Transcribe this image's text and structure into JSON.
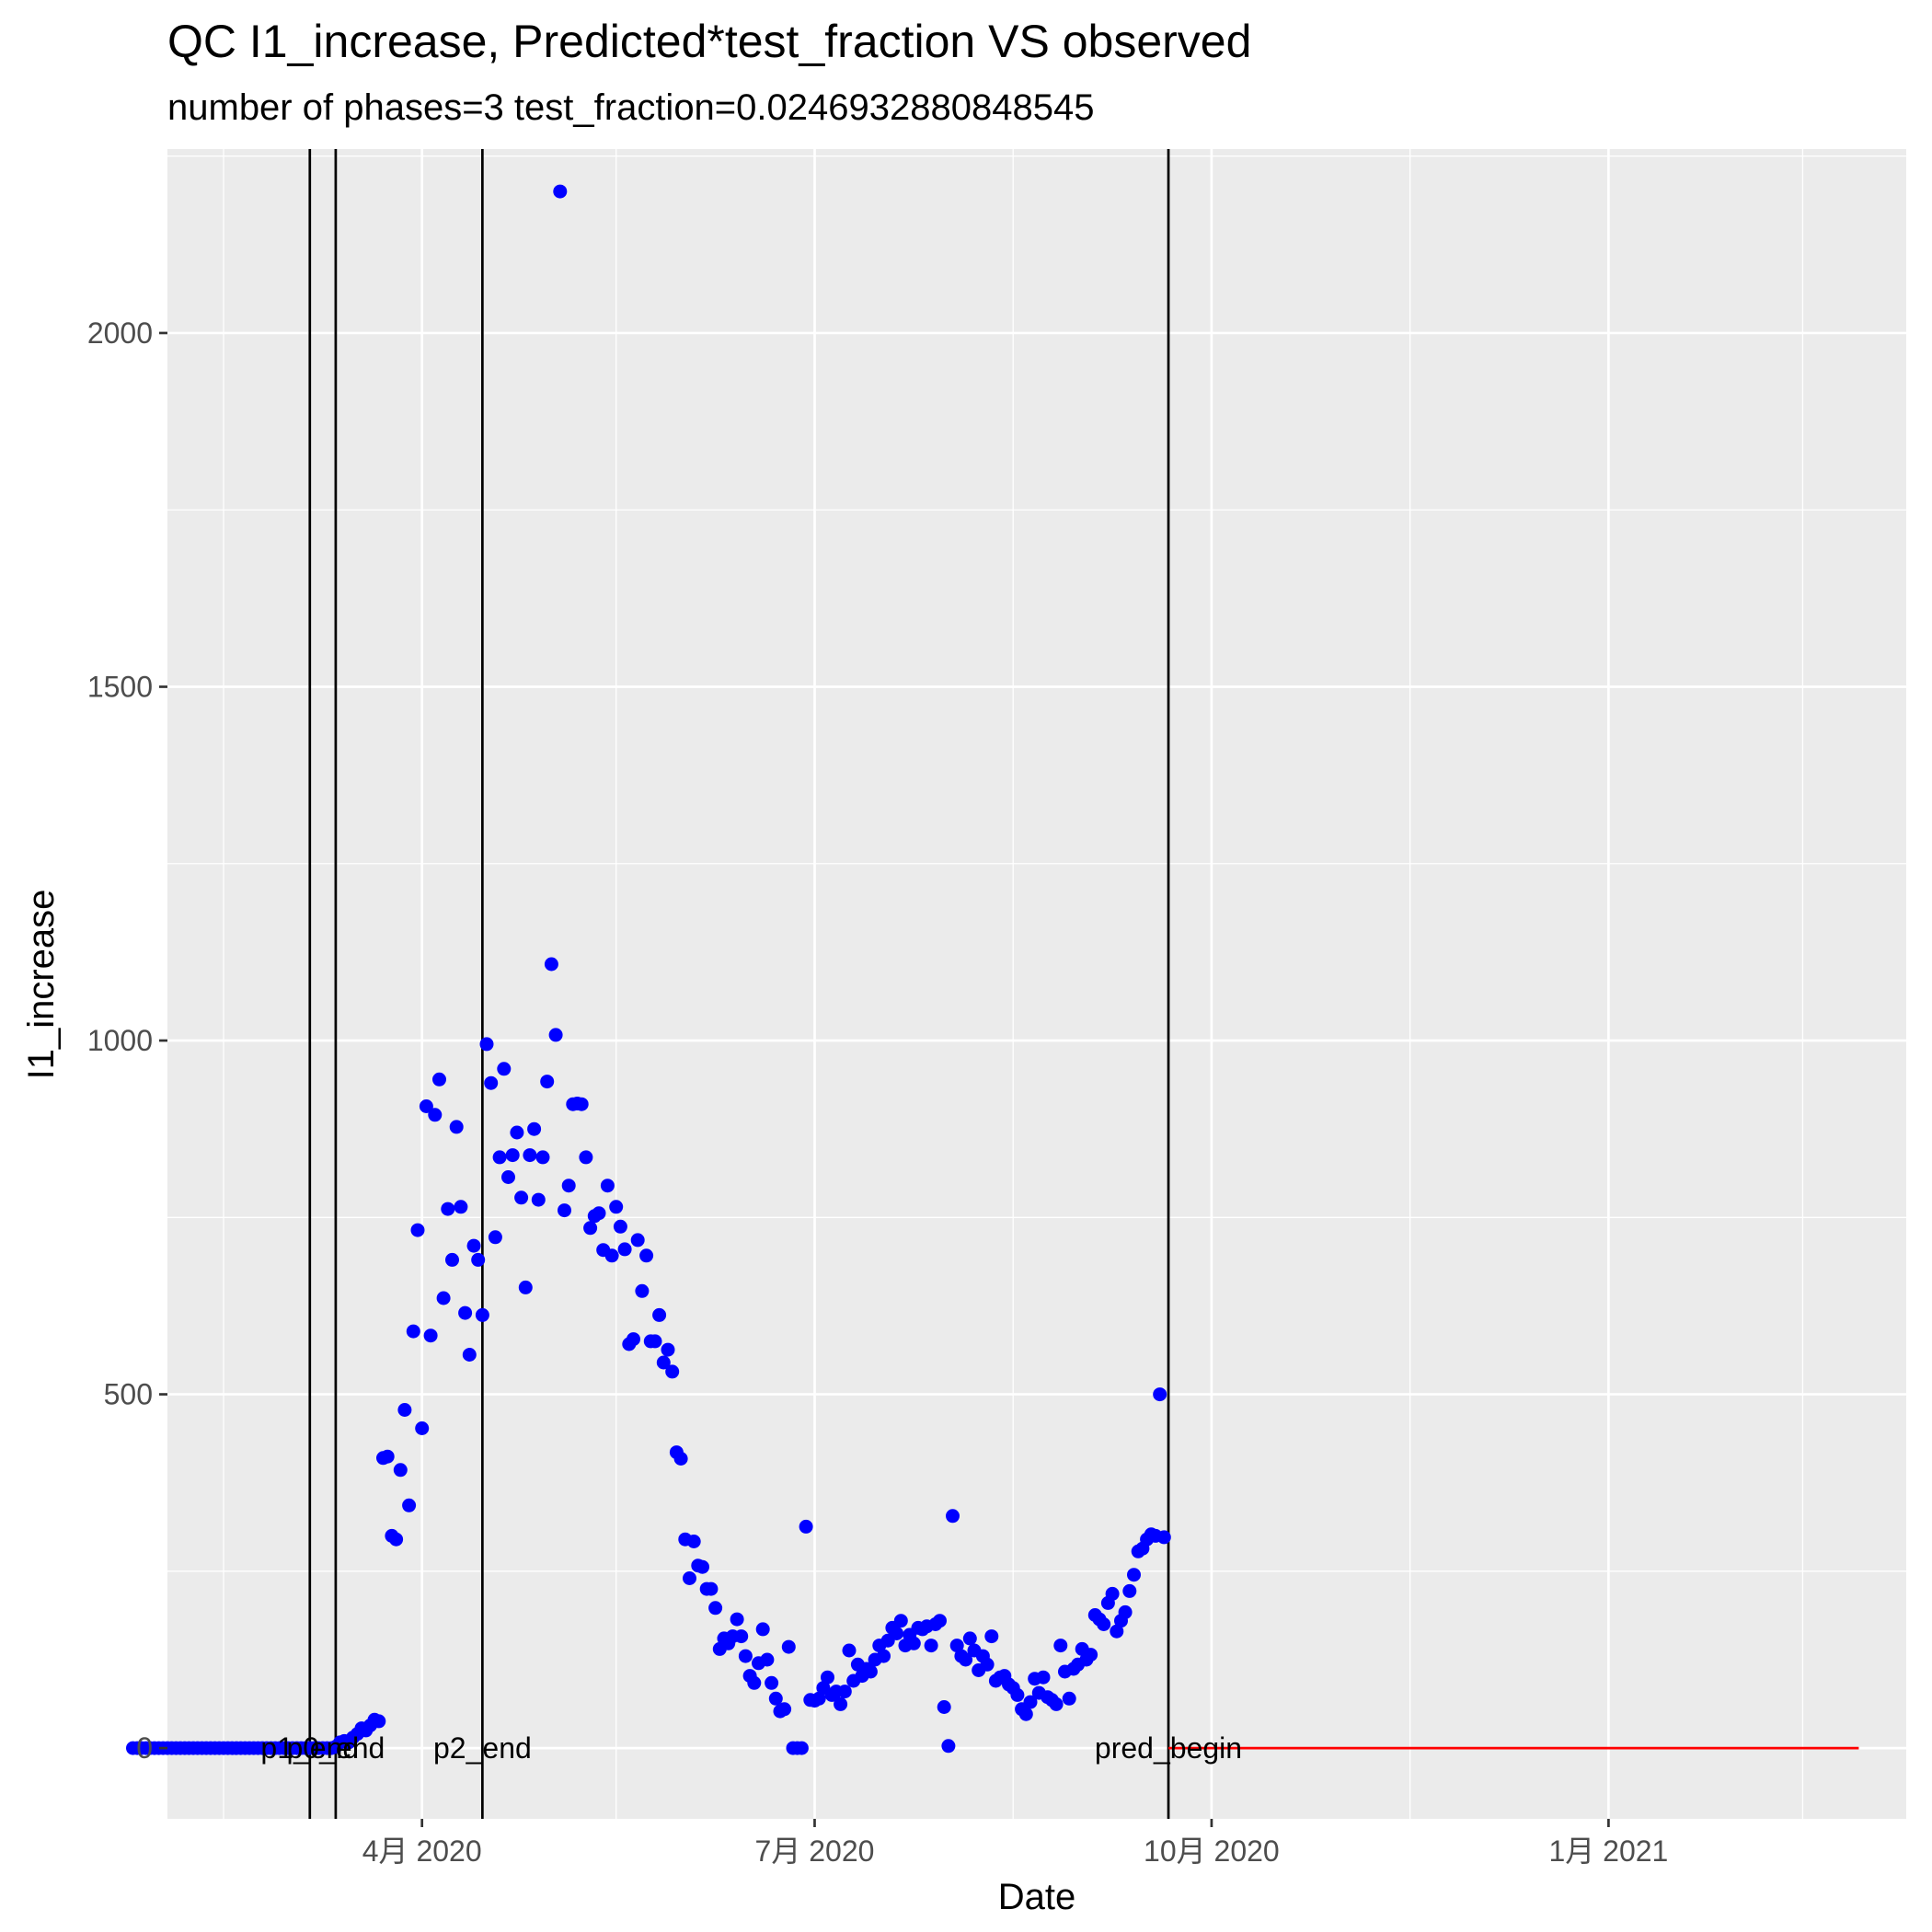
{
  "title": "QC I1_increase, Predicted*test_fraction VS observed",
  "subtitle": "number of phases=3   test_fraction=0.0246932880848545",
  "chart_data": {
    "type": "scatter",
    "title": "QC I1_increase, Predicted*test_fraction VS observed",
    "subtitle": "number of phases=3   test_fraction=0.0246932880848545",
    "xlabel": "Date",
    "ylabel": "I1_increase",
    "x_range": [
      "2020-02-02",
      "2021-03-11"
    ],
    "ylim": [
      -100,
      2260
    ],
    "grid": true,
    "legend": "none",
    "x_ticks": [
      {
        "date": "2020-04-01",
        "label": "4月 2020"
      },
      {
        "date": "2020-07-01",
        "label": "7月 2020"
      },
      {
        "date": "2020-10-01",
        "label": "10月 2020"
      },
      {
        "date": "2021-01-01",
        "label": "1月 2021"
      }
    ],
    "x_minor_ticks": [
      "2020-02-15",
      "2020-05-16",
      "2020-08-16",
      "2020-11-16",
      "2021-02-15"
    ],
    "y_ticks": [
      0,
      500,
      1000,
      1500,
      2000
    ],
    "y_minor_ticks": [
      250,
      750,
      1250,
      1750,
      2250
    ],
    "vlines": [
      {
        "date": "2020-03-06"
      },
      {
        "date": "2020-03-12"
      },
      {
        "date": "2020-04-15"
      },
      {
        "date": "2020-09-21"
      }
    ],
    "annotations": [
      {
        "text": "p1_end",
        "date": "2020-03-06",
        "y": 0
      },
      {
        "text": "p0_end",
        "date": "2020-03-12",
        "y": 0
      },
      {
        "text": "p2_end",
        "date": "2020-04-15",
        "y": 0
      },
      {
        "text": "pred_begin",
        "date": "2020-09-21",
        "y": 0
      }
    ],
    "colors": {
      "observed": "#0000ff",
      "predicted": "#ff0000",
      "vline": "#000000",
      "panel": "#ebebeb",
      "grid": "#ffffff"
    },
    "series": [
      {
        "type": "points",
        "points": [
          [
            "2020-01-25",
            0
          ],
          [
            "2020-01-26",
            0
          ],
          [
            "2020-01-27",
            0
          ],
          [
            "2020-01-28",
            0
          ],
          [
            "2020-01-29",
            0
          ],
          [
            "2020-01-30",
            0
          ],
          [
            "2020-01-31",
            0
          ],
          [
            "2020-02-01",
            0
          ],
          [
            "2020-02-02",
            0
          ],
          [
            "2020-02-03",
            0
          ],
          [
            "2020-02-04",
            0
          ],
          [
            "2020-02-05",
            0
          ],
          [
            "2020-02-06",
            0
          ],
          [
            "2020-02-07",
            0
          ],
          [
            "2020-02-08",
            0
          ],
          [
            "2020-02-09",
            0
          ],
          [
            "2020-02-10",
            0
          ],
          [
            "2020-02-11",
            0
          ],
          [
            "2020-02-12",
            0
          ],
          [
            "2020-02-13",
            0
          ],
          [
            "2020-02-14",
            0
          ],
          [
            "2020-02-15",
            0
          ],
          [
            "2020-02-16",
            0
          ],
          [
            "2020-02-17",
            0
          ],
          [
            "2020-02-18",
            0
          ],
          [
            "2020-02-19",
            0
          ],
          [
            "2020-02-20",
            0
          ],
          [
            "2020-02-21",
            0
          ],
          [
            "2020-02-22",
            0
          ],
          [
            "2020-02-23",
            0
          ],
          [
            "2020-02-24",
            0
          ],
          [
            "2020-02-25",
            0
          ],
          [
            "2020-02-26",
            0
          ],
          [
            "2020-02-27",
            0
          ],
          [
            "2020-02-28",
            0
          ],
          [
            "2020-02-29",
            0
          ],
          [
            "2020-03-01",
            0
          ],
          [
            "2020-03-02",
            0
          ],
          [
            "2020-03-03",
            0
          ],
          [
            "2020-03-04",
            0
          ],
          [
            "2020-03-05",
            0
          ],
          [
            "2020-03-06",
            0
          ],
          [
            "2020-03-07",
            0
          ],
          [
            "2020-03-08",
            0
          ],
          [
            "2020-03-09",
            0
          ],
          [
            "2020-03-10",
            0
          ],
          [
            "2020-03-11",
            0
          ],
          [
            "2020-03-12",
            2
          ],
          [
            "2020-03-13",
            8
          ],
          [
            "2020-03-14",
            10
          ],
          [
            "2020-03-15",
            8
          ],
          [
            "2020-03-16",
            15
          ],
          [
            "2020-03-17",
            20
          ],
          [
            "2020-03-18",
            28
          ],
          [
            "2020-03-19",
            25
          ],
          [
            "2020-03-20",
            32
          ],
          [
            "2020-03-21",
            40
          ],
          [
            "2020-03-22",
            38
          ],
          [
            "2020-03-23",
            410
          ],
          [
            "2020-03-24",
            412
          ],
          [
            "2020-03-25",
            300
          ],
          [
            "2020-03-26",
            295
          ],
          [
            "2020-03-27",
            393
          ],
          [
            "2020-03-28",
            478
          ],
          [
            "2020-03-29",
            343
          ],
          [
            "2020-03-30",
            589
          ],
          [
            "2020-03-31",
            732
          ],
          [
            "2020-04-01",
            452
          ],
          [
            "2020-04-02",
            907
          ],
          [
            "2020-04-03",
            583
          ],
          [
            "2020-04-04",
            895
          ],
          [
            "2020-04-05",
            945
          ],
          [
            "2020-04-06",
            636
          ],
          [
            "2020-04-07",
            762
          ],
          [
            "2020-04-08",
            690
          ],
          [
            "2020-04-09",
            878
          ],
          [
            "2020-04-10",
            765
          ],
          [
            "2020-04-11",
            615
          ],
          [
            "2020-04-12",
            556
          ],
          [
            "2020-04-13",
            710
          ],
          [
            "2020-04-14",
            690
          ],
          [
            "2020-04-15",
            612
          ],
          [
            "2020-04-16",
            995
          ],
          [
            "2020-04-17",
            940
          ],
          [
            "2020-04-18",
            722
          ],
          [
            "2020-04-19",
            835
          ],
          [
            "2020-04-20",
            960
          ],
          [
            "2020-04-21",
            807
          ],
          [
            "2020-04-22",
            838
          ],
          [
            "2020-04-23",
            870
          ],
          [
            "2020-04-24",
            778
          ],
          [
            "2020-04-25",
            651
          ],
          [
            "2020-04-26",
            838
          ],
          [
            "2020-04-27",
            875
          ],
          [
            "2020-04-28",
            775
          ],
          [
            "2020-04-29",
            835
          ],
          [
            "2020-04-30",
            942
          ],
          [
            "2020-05-01",
            1108
          ],
          [
            "2020-05-02",
            1008
          ],
          [
            "2020-05-03",
            2200
          ],
          [
            "2020-05-04",
            760
          ],
          [
            "2020-05-05",
            795
          ],
          [
            "2020-05-06",
            910
          ],
          [
            "2020-05-07",
            911
          ],
          [
            "2020-05-08",
            910
          ],
          [
            "2020-05-09",
            835
          ],
          [
            "2020-05-10",
            735
          ],
          [
            "2020-05-11",
            752
          ],
          [
            "2020-05-12",
            756
          ],
          [
            "2020-05-13",
            704
          ],
          [
            "2020-05-14",
            795
          ],
          [
            "2020-05-15",
            696
          ],
          [
            "2020-05-16",
            765
          ],
          [
            "2020-05-17",
            737
          ],
          [
            "2020-05-18",
            705
          ],
          [
            "2020-05-19",
            571
          ],
          [
            "2020-05-20",
            578
          ],
          [
            "2020-05-21",
            718
          ],
          [
            "2020-05-22",
            646
          ],
          [
            "2020-05-23",
            696
          ],
          [
            "2020-05-24",
            575
          ],
          [
            "2020-05-25",
            575
          ],
          [
            "2020-05-26",
            612
          ],
          [
            "2020-05-27",
            545
          ],
          [
            "2020-05-28",
            563
          ],
          [
            "2020-05-29",
            532
          ],
          [
            "2020-05-30",
            418
          ],
          [
            "2020-05-31",
            409
          ],
          [
            "2020-06-01",
            295
          ],
          [
            "2020-06-02",
            240
          ],
          [
            "2020-06-03",
            292
          ],
          [
            "2020-06-04",
            258
          ],
          [
            "2020-06-05",
            256
          ],
          [
            "2020-06-06",
            225
          ],
          [
            "2020-06-07",
            225
          ],
          [
            "2020-06-08",
            198
          ],
          [
            "2020-06-09",
            140
          ],
          [
            "2020-06-10",
            155
          ],
          [
            "2020-06-11",
            148
          ],
          [
            "2020-06-12",
            158
          ],
          [
            "2020-06-13",
            182
          ],
          [
            "2020-06-14",
            158
          ],
          [
            "2020-06-15",
            130
          ],
          [
            "2020-06-16",
            102
          ],
          [
            "2020-06-17",
            92
          ],
          [
            "2020-06-18",
            120
          ],
          [
            "2020-06-19",
            168
          ],
          [
            "2020-06-20",
            125
          ],
          [
            "2020-06-21",
            92
          ],
          [
            "2020-06-22",
            70
          ],
          [
            "2020-06-23",
            52
          ],
          [
            "2020-06-24",
            55
          ],
          [
            "2020-06-25",
            143
          ],
          [
            "2020-06-26",
            0
          ],
          [
            "2020-06-27",
            0
          ],
          [
            "2020-06-28",
            0
          ],
          [
            "2020-06-29",
            313
          ],
          [
            "2020-06-30",
            68
          ],
          [
            "2020-07-01",
            67
          ],
          [
            "2020-07-02",
            70
          ],
          [
            "2020-07-03",
            85
          ],
          [
            "2020-07-04",
            100
          ],
          [
            "2020-07-05",
            75
          ],
          [
            "2020-07-06",
            80
          ],
          [
            "2020-07-07",
            62
          ],
          [
            "2020-07-08",
            80
          ],
          [
            "2020-07-09",
            138
          ],
          [
            "2020-07-10",
            95
          ],
          [
            "2020-07-11",
            118
          ],
          [
            "2020-07-12",
            102
          ],
          [
            "2020-07-13",
            112
          ],
          [
            "2020-07-14",
            108
          ],
          [
            "2020-07-15",
            125
          ],
          [
            "2020-07-16",
            145
          ],
          [
            "2020-07-17",
            130
          ],
          [
            "2020-07-18",
            152
          ],
          [
            "2020-07-19",
            170
          ],
          [
            "2020-07-20",
            162
          ],
          [
            "2020-07-21",
            180
          ],
          [
            "2020-07-22",
            145
          ],
          [
            "2020-07-23",
            160
          ],
          [
            "2020-07-24",
            148
          ],
          [
            "2020-07-25",
            170
          ],
          [
            "2020-07-26",
            168
          ],
          [
            "2020-07-27",
            172
          ],
          [
            "2020-07-28",
            145
          ],
          [
            "2020-07-29",
            175
          ],
          [
            "2020-07-30",
            180
          ],
          [
            "2020-07-31",
            58
          ],
          [
            "2020-08-01",
            3
          ],
          [
            "2020-08-02",
            328
          ],
          [
            "2020-08-03",
            145
          ],
          [
            "2020-08-04",
            130
          ],
          [
            "2020-08-05",
            125
          ],
          [
            "2020-08-06",
            155
          ],
          [
            "2020-08-07",
            138
          ],
          [
            "2020-08-08",
            110
          ],
          [
            "2020-08-09",
            130
          ],
          [
            "2020-08-10",
            118
          ],
          [
            "2020-08-11",
            158
          ],
          [
            "2020-08-12",
            95
          ],
          [
            "2020-08-13",
            100
          ],
          [
            "2020-08-14",
            102
          ],
          [
            "2020-08-15",
            90
          ],
          [
            "2020-08-16",
            85
          ],
          [
            "2020-08-17",
            75
          ],
          [
            "2020-08-18",
            55
          ],
          [
            "2020-08-19",
            48
          ],
          [
            "2020-08-20",
            65
          ],
          [
            "2020-08-21",
            98
          ],
          [
            "2020-08-22",
            78
          ],
          [
            "2020-08-23",
            100
          ],
          [
            "2020-08-24",
            72
          ],
          [
            "2020-08-25",
            68
          ],
          [
            "2020-08-26",
            62
          ],
          [
            "2020-08-27",
            145
          ],
          [
            "2020-08-28",
            108
          ],
          [
            "2020-08-29",
            70
          ],
          [
            "2020-08-30",
            112
          ],
          [
            "2020-08-31",
            118
          ],
          [
            "2020-09-01",
            140
          ],
          [
            "2020-09-02",
            125
          ],
          [
            "2020-09-03",
            132
          ],
          [
            "2020-09-04",
            188
          ],
          [
            "2020-09-05",
            182
          ],
          [
            "2020-09-06",
            175
          ],
          [
            "2020-09-07",
            205
          ],
          [
            "2020-09-08",
            218
          ],
          [
            "2020-09-09",
            165
          ],
          [
            "2020-09-10",
            180
          ],
          [
            "2020-09-11",
            192
          ],
          [
            "2020-09-12",
            222
          ],
          [
            "2020-09-13",
            245
          ],
          [
            "2020-09-14",
            278
          ],
          [
            "2020-09-15",
            282
          ],
          [
            "2020-09-16",
            295
          ],
          [
            "2020-09-17",
            302
          ],
          [
            "2020-09-18",
            300
          ],
          [
            "2020-09-19",
            500
          ],
          [
            "2020-09-20",
            298
          ]
        ]
      },
      {
        "type": "line",
        "points": [
          [
            "2020-09-21",
            0
          ],
          [
            "2021-02-28",
            0
          ]
        ]
      }
    ]
  }
}
